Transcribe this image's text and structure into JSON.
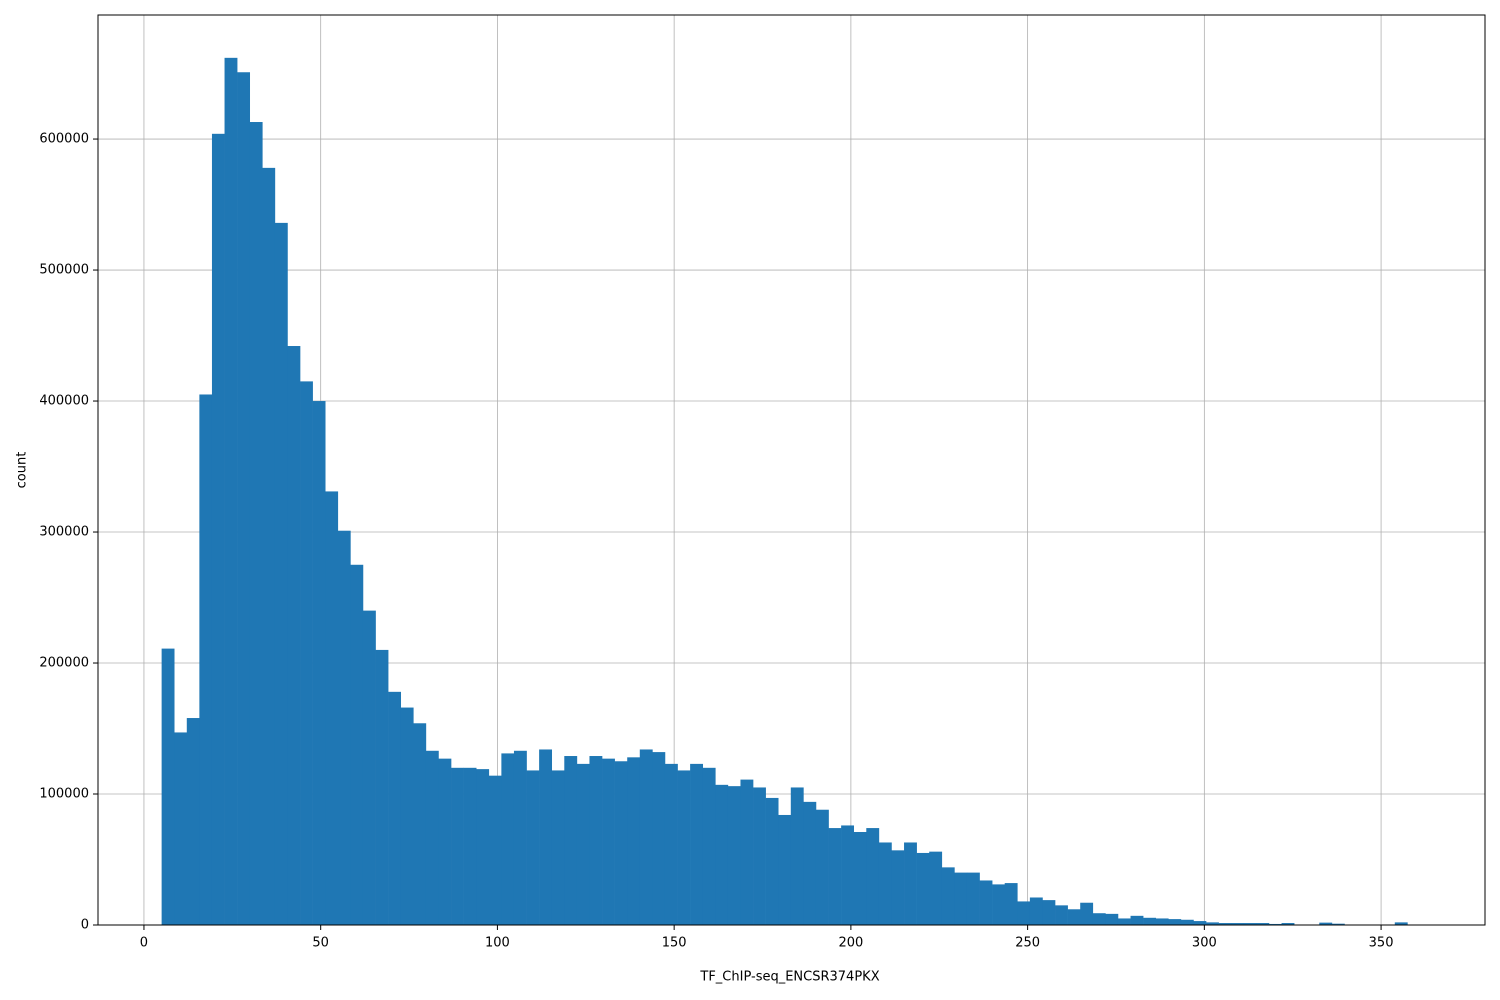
{
  "chart_data": {
    "type": "histogram",
    "xlabel": "TF_ChIP-seq_ENCSR374PKX",
    "ylabel": "count",
    "color": "#1f77b4",
    "grid": true,
    "xlim": [
      -13,
      379.4
    ],
    "ylim": [
      0,
      694700
    ],
    "xticks": [
      0,
      50,
      100,
      150,
      200,
      250,
      300,
      350
    ],
    "yticks": [
      0,
      100000,
      200000,
      300000,
      400000,
      500000,
      600000
    ],
    "bins": [
      5,
      8.56,
      12.12,
      15.68,
      19.24,
      22.8,
      26.36,
      29.92,
      33.48,
      37.04,
      40.6,
      44.16,
      47.72,
      51.28,
      54.84,
      58.4,
      61.96,
      65.52,
      69.08,
      72.64,
      76.2,
      79.76,
      83.32,
      86.88,
      90.44,
      94,
      97.56,
      101.12,
      104.68,
      108.24,
      111.8,
      115.36,
      118.92,
      122.48,
      126.04,
      129.6,
      133.16,
      136.72,
      140.28,
      143.84,
      147.4,
      150.96,
      154.52,
      158.08,
      161.64,
      165.2,
      168.76,
      172.32,
      175.88,
      179.44,
      183,
      186.56,
      190.12,
      193.68,
      197.24,
      200.8,
      204.36,
      207.92,
      211.48,
      215.04,
      218.6,
      222.16,
      225.72,
      229.28,
      232.84,
      236.4,
      239.96,
      243.52,
      247.08,
      250.64,
      254.2,
      257.76,
      261.32,
      264.88,
      268.44,
      272,
      275.56,
      279.12,
      282.68,
      286.24,
      289.8,
      293.36,
      296.92,
      300.48,
      304.04,
      307.6,
      311.16,
      314.72,
      318.28,
      321.84,
      325.4,
      328.96,
      332.52,
      336.08,
      339.64,
      343.2,
      346.76,
      350.32,
      353.88,
      357.44,
      361
    ],
    "values": [
      211000,
      147000,
      158000,
      405000,
      604000,
      662000,
      651000,
      613000,
      578000,
      536000,
      442000,
      415000,
      400000,
      331000,
      301000,
      275000,
      240000,
      210000,
      178000,
      166000,
      154000,
      133000,
      127000,
      120000,
      120000,
      119000,
      114000,
      131000,
      133000,
      118000,
      134000,
      118000,
      129000,
      123000,
      129000,
      127000,
      125000,
      128000,
      134000,
      132000,
      123000,
      118000,
      123000,
      120000,
      107000,
      106000,
      111000,
      105000,
      97000,
      84000,
      105000,
      94000,
      88000,
      74000,
      76000,
      71000,
      74000,
      63000,
      57000,
      63000,
      55000,
      56000,
      44000,
      40000,
      40000,
      34000,
      31000,
      32000,
      18000,
      21000,
      19000,
      15000,
      12000,
      17000,
      9000,
      8500,
      5000,
      7000,
      5500,
      5000,
      4500,
      4000,
      3000,
      2000,
      1500,
      1500,
      1500,
      1500,
      800,
      1500,
      300,
      300,
      1800,
      1000,
      200,
      200,
      200,
      200,
      2000,
      200
    ]
  }
}
